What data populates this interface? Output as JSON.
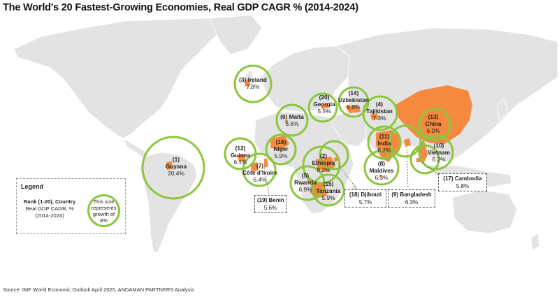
{
  "title": "The World's 20 Fastest-Growing Economies, Real GDP CAGR % (2014-2024)",
  "source": "Source: IMF World Economic Outlook April 2025, ANDAMAN PARTNERS Analysis",
  "legend": {
    "title": "Legend",
    "rank_line1": "Rank (1-20), Country",
    "rank_line2": "Real GDP CAGR, %",
    "rank_line3": "(2014-2024)",
    "circle_text": "This size represents growth of 8%"
  },
  "colors": {
    "land": "#e3e3e3",
    "highlight": "#f58a3e",
    "circle": "#8cc63f"
  },
  "economies": [
    {
      "rank": "(1)",
      "name": "Guyana",
      "cagr": "20.4%"
    },
    {
      "rank": "(2)",
      "name": "Ethiopia",
      "cagr": "8.2%"
    },
    {
      "rank": "(3)",
      "name": "Ireland",
      "cagr": "7.8%"
    },
    {
      "rank": "(4)",
      "name": "Tajikistan",
      "cagr": "7.3%"
    },
    {
      "rank": "(5)",
      "name": "Rwanda",
      "cagr": "6.9%"
    },
    {
      "rank": "(6)",
      "name": "Malta",
      "cagr": "6.6%"
    },
    {
      "rank": "(7)",
      "name": "Côte d'Ivoire",
      "cagr": "6.4%"
    },
    {
      "rank": "(8)",
      "name": "Maldives",
      "cagr": "6.3%"
    },
    {
      "rank": "(9)",
      "name": "Bangladesh",
      "cagr": "6.3%"
    },
    {
      "rank": "(10)",
      "name": "Vietnam",
      "cagr": "6.2%"
    },
    {
      "rank": "(11)",
      "name": "India",
      "cagr": "6.2%"
    },
    {
      "rank": "(12)",
      "name": "Guinea",
      "cagr": "6.1%"
    },
    {
      "rank": "(13)",
      "name": "China",
      "cagr": "6.0%"
    },
    {
      "rank": "(14)",
      "name": "Uzbekistan",
      "cagr": "5.9%"
    },
    {
      "rank": "(15)",
      "name": "Tanzania",
      "cagr": "5.9%"
    },
    {
      "rank": "(16)",
      "name": "Niger",
      "cagr": "5.9%"
    },
    {
      "rank": "(17)",
      "name": "Cambodia",
      "cagr": "5.8%"
    },
    {
      "rank": "(18)",
      "name": "Djibouti",
      "cagr": "5.7%"
    },
    {
      "rank": "(19)",
      "name": "Benin",
      "cagr": "5.6%"
    },
    {
      "rank": "(20)",
      "name": "Georgia",
      "cagr": "5.5%"
    }
  ]
}
